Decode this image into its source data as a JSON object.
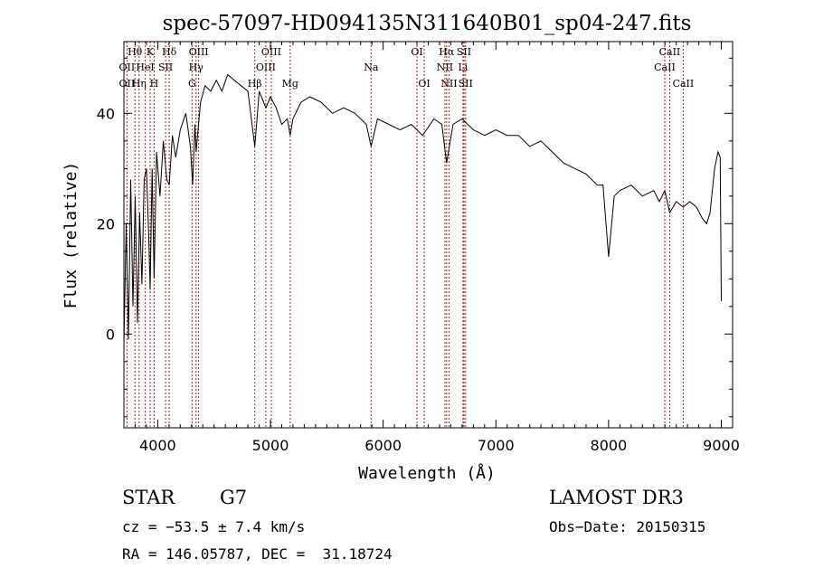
{
  "chart_data": {
    "type": "line",
    "title": "spec-57097-HD094135N311640B01_sp04-247.fits",
    "xlabel": "Wavelength (Å)",
    "ylabel": "Flux (relative)",
    "xlim": [
      3700,
      9100
    ],
    "ylim": [
      -17,
      53
    ],
    "x_ticks": [
      4000,
      5000,
      6000,
      7000,
      8000,
      9000
    ],
    "y_ticks": [
      0,
      20,
      40
    ],
    "grid": false,
    "series": [
      {
        "x": [
          3700,
          3720,
          3740,
          3760,
          3780,
          3800,
          3820,
          3840,
          3860,
          3880,
          3900,
          3920,
          3933,
          3950,
          3968,
          3990,
          4020,
          4050,
          4080,
          4102,
          4130,
          4160,
          4200,
          4250,
          4290,
          4310,
          4330,
          4340,
          4380,
          4420,
          4470,
          4520,
          4570,
          4620,
          4680,
          4740,
          4800,
          4861,
          4900,
          4960,
          5000,
          5050,
          5100,
          5150,
          5175,
          5200,
          5270,
          5350,
          5450,
          5550,
          5650,
          5750,
          5850,
          5893,
          5950,
          6050,
          6150,
          6250,
          6350,
          6450,
          6520,
          6563,
          6620,
          6700,
          6800,
          6900,
          7000,
          7100,
          7200,
          7300,
          7400,
          7500,
          7600,
          7700,
          7800,
          7900,
          7950,
          8000,
          8050,
          8100,
          8200,
          8300,
          8400,
          8450,
          8498,
          8542,
          8600,
          8662,
          8720,
          8780,
          8830,
          8870,
          8900,
          8940,
          8970,
          8990,
          9000
        ],
        "y": [
          -2,
          20,
          -1,
          28,
          5,
          25,
          2,
          22,
          9,
          28,
          30,
          18,
          8,
          30,
          10,
          33,
          25,
          35,
          28,
          27,
          36,
          32,
          37,
          40,
          34,
          27,
          38,
          33,
          42,
          45,
          44,
          46,
          44,
          47,
          46,
          45,
          44,
          34,
          44,
          41,
          43,
          41,
          38,
          39,
          36,
          39,
          42,
          43,
          42,
          40,
          41,
          40,
          38,
          34,
          39,
          38,
          37,
          38,
          36,
          39,
          38,
          31,
          38,
          39,
          37,
          36,
          37,
          36,
          36,
          34,
          35,
          33,
          31,
          30,
          29,
          27,
          27,
          14,
          25,
          26,
          27,
          25,
          26,
          24,
          26,
          22,
          24,
          23,
          24,
          23,
          21,
          20,
          22,
          30,
          33,
          32,
          6
        ]
      }
    ],
    "line_labels": [
      {
        "text": "Hθ",
        "wave": 3798,
        "row": 0
      },
      {
        "text": "OII",
        "wave": 3727,
        "row": 1
      },
      {
        "text": "OII",
        "wave": 3727,
        "row": 2
      },
      {
        "text": "K",
        "wave": 3933,
        "row": 0
      },
      {
        "text": "HeI",
        "wave": 3889,
        "row": 1
      },
      {
        "text": "Hη",
        "wave": 3835,
        "row": 2
      },
      {
        "text": "Hδ",
        "wave": 4102,
        "row": 0
      },
      {
        "text": "SII",
        "wave": 4070,
        "row": 1
      },
      {
        "text": "H",
        "wave": 3968,
        "row": 2
      },
      {
        "text": "OIII",
        "wave": 4363,
        "row": 0
      },
      {
        "text": "Hγ",
        "wave": 4340,
        "row": 1
      },
      {
        "text": "G",
        "wave": 4305,
        "row": 2
      },
      {
        "text": "OIII",
        "wave": 5007,
        "row": 0
      },
      {
        "text": "OIII",
        "wave": 4959,
        "row": 1
      },
      {
        "text": "Hβ",
        "wave": 4861,
        "row": 2
      },
      {
        "text": "Mg",
        "wave": 5175,
        "row": 2
      },
      {
        "text": "Na",
        "wave": 5893,
        "row": 1
      },
      {
        "text": "OI",
        "wave": 6300,
        "row": 0
      },
      {
        "text": "OI",
        "wave": 6364,
        "row": 2
      },
      {
        "text": "Hα",
        "wave": 6563,
        "row": 0
      },
      {
        "text": "NII",
        "wave": 6548,
        "row": 1
      },
      {
        "text": "NII",
        "wave": 6584,
        "row": 2
      },
      {
        "text": "SII",
        "wave": 6717,
        "row": 0
      },
      {
        "text": "Li",
        "wave": 6708,
        "row": 1
      },
      {
        "text": "SII",
        "wave": 6731,
        "row": 2
      },
      {
        "text": "CaII",
        "wave": 8542,
        "row": 0
      },
      {
        "text": "CaII",
        "wave": 8498,
        "row": 1
      },
      {
        "text": "CaII",
        "wave": 8662,
        "row": 2
      }
    ],
    "marker_lines": [
      3727,
      3798,
      3835,
      3889,
      3933,
      3968,
      4070,
      4102,
      4305,
      4340,
      4363,
      4861,
      4959,
      5007,
      5175,
      5893,
      6300,
      6364,
      6548,
      6563,
      6584,
      6708,
      6717,
      6731,
      8498,
      8542,
      8662
    ],
    "line_color": "#000000",
    "marker_color": "#b22222"
  },
  "info": {
    "object_class": "STAR",
    "subclass": "G7",
    "survey": "LAMOST DR3",
    "cz": "cz = −53.5 ± 7.4 km/s",
    "obs_date": "Obs−Date: 20150315",
    "coords": "RA = 146.05787, DEC =  31.18724"
  }
}
